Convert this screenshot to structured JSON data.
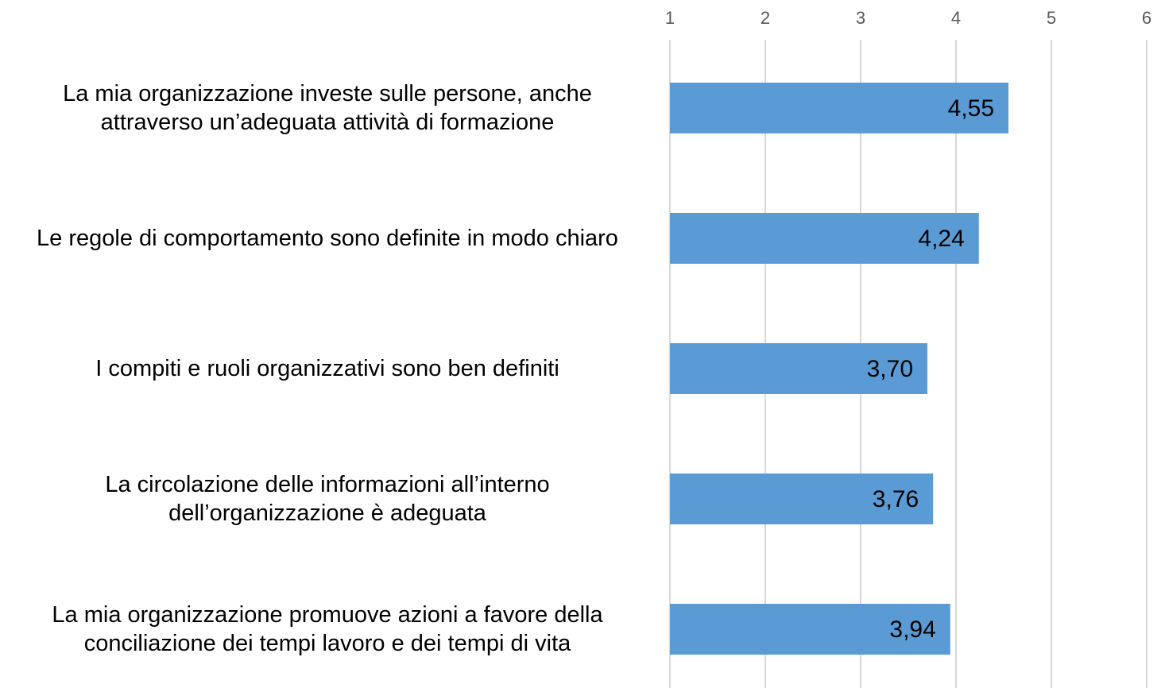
{
  "chart_data": {
    "type": "barh",
    "categories": [
      "La mia organizzazione investe sulle persone, anche attraverso un’adeguata attività di formazione",
      "Le regole di comportamento sono definite in modo chiaro",
      "I compiti e ruoli organizzativi sono ben definiti",
      "La circolazione delle informazioni all’interno dell’organizzazione è adeguata",
      "La mia organizzazione promuove azioni a favore della conciliazione dei tempi lavoro e dei tempi di vita"
    ],
    "values": [
      4.55,
      4.24,
      3.7,
      3.76,
      3.94
    ],
    "value_labels": [
      "4,55",
      "4,24",
      "3,70",
      "3,76",
      "3,94"
    ],
    "color": "#5b9bd5",
    "xlim": [
      1,
      6
    ],
    "xticks": [
      1,
      2,
      3,
      4,
      5,
      6
    ],
    "grid": true
  }
}
